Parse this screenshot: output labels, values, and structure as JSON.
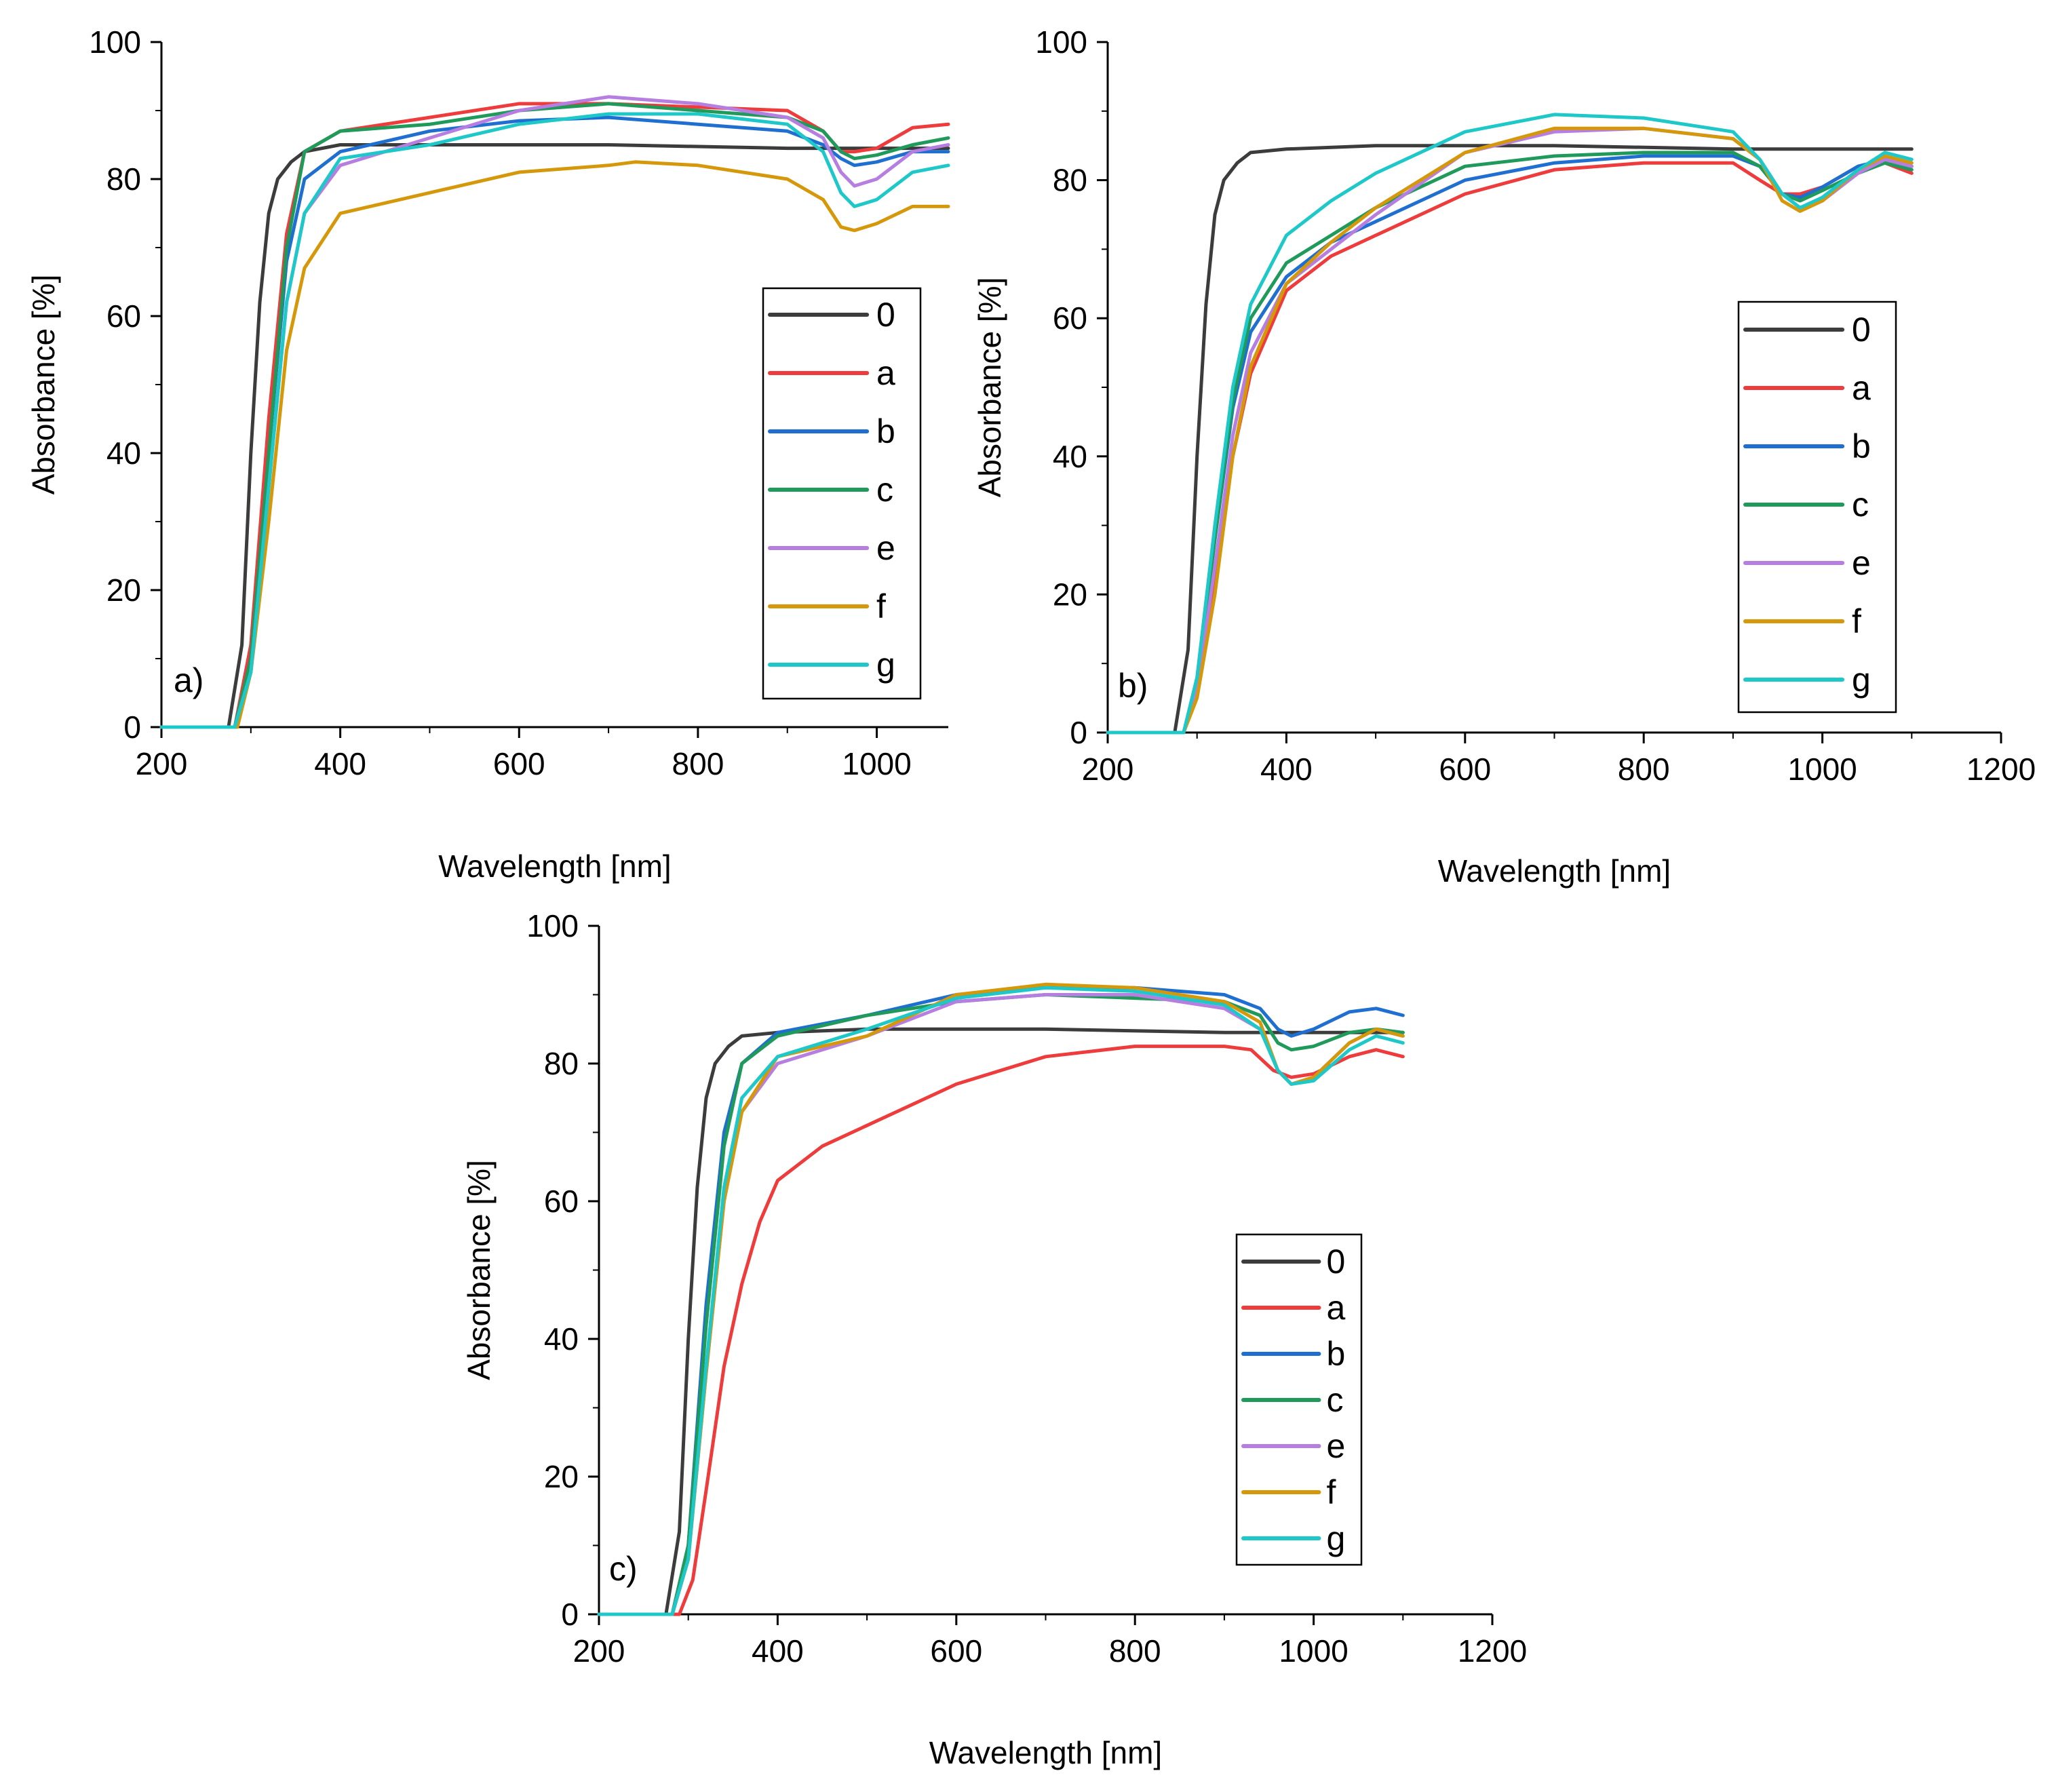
{
  "figure": "UV-Vis-NIR absorbance spectra, three panels",
  "colors": {
    "0": "#3c3c3c",
    "a": "#ee3b3b",
    "b": "#1f6fd1",
    "c": "#1f9a5b",
    "e": "#b57ee0",
    "f": "#d4980a",
    "g": "#1ec8c8"
  },
  "chart_data": [
    {
      "type": "line",
      "panel_label": "a)",
      "xlabel": "Wavelength [nm]",
      "ylabel": "Absorbance [%]",
      "xlim": [
        200,
        1080
      ],
      "ylim": [
        0,
        100
      ],
      "xticks": [
        200,
        400,
        600,
        800,
        1000
      ],
      "yticks": [
        0,
        20,
        40,
        60,
        80,
        100
      ],
      "legend_position": "right-middle",
      "series": [
        {
          "name": "0",
          "x": [
            200,
            275,
            290,
            300,
            310,
            320,
            330,
            345,
            360,
            400,
            500,
            700,
            900,
            1000,
            1080
          ],
          "y": [
            0,
            0,
            12,
            40,
            62,
            75,
            80,
            82.5,
            84,
            85,
            85,
            85,
            84.5,
            84.5,
            84.5
          ]
        },
        {
          "name": "a",
          "x": [
            200,
            282,
            300,
            320,
            340,
            360,
            400,
            500,
            600,
            700,
            800,
            900,
            940,
            960,
            975,
            1000,
            1040,
            1080
          ],
          "y": [
            0,
            0,
            12,
            45,
            72,
            84,
            87,
            89,
            91,
            91,
            90.5,
            90,
            87,
            84,
            84,
            84.5,
            87.5,
            88
          ]
        },
        {
          "name": "b",
          "x": [
            200,
            282,
            300,
            320,
            340,
            360,
            400,
            500,
            600,
            700,
            800,
            900,
            940,
            960,
            975,
            1000,
            1040,
            1080
          ],
          "y": [
            0,
            0,
            10,
            40,
            68,
            80,
            84,
            87,
            88.5,
            89,
            88,
            87,
            85,
            83,
            82,
            82.5,
            84,
            84
          ]
        },
        {
          "name": "c",
          "x": [
            200,
            282,
            300,
            320,
            340,
            360,
            400,
            500,
            600,
            700,
            800,
            900,
            940,
            960,
            975,
            1000,
            1040,
            1080
          ],
          "y": [
            0,
            0,
            10,
            40,
            70,
            84,
            87,
            88,
            90,
            91,
            90,
            89,
            87,
            84,
            83,
            83.5,
            85,
            86
          ]
        },
        {
          "name": "e",
          "x": [
            200,
            282,
            300,
            320,
            340,
            360,
            400,
            500,
            600,
            700,
            800,
            900,
            940,
            960,
            975,
            1000,
            1040,
            1080
          ],
          "y": [
            0,
            0,
            8,
            35,
            62,
            75,
            82,
            86,
            90,
            92,
            91,
            89,
            86,
            81,
            79,
            80,
            84,
            85
          ]
        },
        {
          "name": "f",
          "x": [
            200,
            285,
            300,
            320,
            340,
            360,
            400,
            500,
            600,
            700,
            730,
            800,
            900,
            940,
            960,
            975,
            1000,
            1040,
            1080
          ],
          "y": [
            0,
            0,
            8,
            30,
            55,
            67,
            75,
            78,
            81,
            82,
            82.5,
            82,
            80,
            77,
            73,
            72.5,
            73.5,
            76,
            76
          ]
        },
        {
          "name": "g",
          "x": [
            200,
            282,
            300,
            320,
            340,
            360,
            400,
            500,
            600,
            700,
            800,
            900,
            940,
            960,
            975,
            1000,
            1040,
            1080
          ],
          "y": [
            0,
            0,
            8,
            35,
            62,
            75,
            83,
            85,
            88,
            89.5,
            89.5,
            88,
            84,
            78,
            76,
            77,
            81,
            82
          ]
        }
      ],
      "legend": [
        "0",
        "a",
        "b",
        "c",
        "e",
        "f",
        "g"
      ]
    },
    {
      "type": "line",
      "panel_label": "b)",
      "xlabel": "Wavelength [nm]",
      "ylabel": "Absorbance [%]",
      "xlim": [
        200,
        1200
      ],
      "ylim": [
        0,
        100
      ],
      "xticks": [
        200,
        400,
        600,
        800,
        1000,
        1200
      ],
      "yticks": [
        0,
        20,
        40,
        60,
        80,
        100
      ],
      "legend_position": "right-middle",
      "series": [
        {
          "name": "0",
          "x": [
            200,
            275,
            290,
            300,
            310,
            320,
            330,
            345,
            360,
            400,
            500,
            700,
            900,
            1000,
            1100
          ],
          "y": [
            0,
            0,
            12,
            40,
            62,
            75,
            80,
            82.5,
            84,
            84.5,
            85,
            85,
            84.5,
            84.5,
            84.5
          ]
        },
        {
          "name": "a",
          "x": [
            200,
            285,
            300,
            320,
            340,
            360,
            400,
            450,
            500,
            600,
            700,
            800,
            900,
            930,
            955,
            975,
            1000,
            1040,
            1070,
            1100
          ],
          "y": [
            0,
            0,
            6,
            22,
            40,
            52,
            64,
            69,
            72,
            78,
            81.5,
            82.5,
            82.5,
            80,
            78,
            78,
            79,
            82,
            82.5,
            81
          ]
        },
        {
          "name": "b",
          "x": [
            200,
            285,
            300,
            320,
            340,
            360,
            400,
            450,
            500,
            600,
            700,
            800,
            900,
            930,
            955,
            975,
            1000,
            1040,
            1070,
            1100
          ],
          "y": [
            0,
            0,
            7,
            28,
            47,
            58,
            66,
            71,
            74,
            80,
            82.5,
            83.5,
            83.5,
            82,
            78,
            77.5,
            79,
            82,
            83,
            82
          ]
        },
        {
          "name": "c",
          "x": [
            200,
            285,
            300,
            320,
            340,
            360,
            400,
            450,
            500,
            600,
            700,
            800,
            900,
            930,
            955,
            975,
            1000,
            1040,
            1070,
            1100
          ],
          "y": [
            0,
            0,
            7,
            28,
            48,
            60,
            68,
            72,
            76,
            82,
            83.5,
            84,
            84,
            82,
            78,
            77,
            78.5,
            81,
            82.5,
            81.5
          ]
        },
        {
          "name": "e",
          "x": [
            200,
            285,
            300,
            320,
            340,
            360,
            400,
            450,
            500,
            600,
            700,
            800,
            900,
            930,
            955,
            975,
            1000,
            1040,
            1070,
            1100
          ],
          "y": [
            0,
            0,
            6,
            24,
            43,
            55,
            65,
            70,
            75,
            84,
            87,
            87.5,
            86,
            83,
            78,
            76,
            77,
            81,
            83,
            82
          ]
        },
        {
          "name": "f",
          "x": [
            200,
            285,
            300,
            320,
            340,
            360,
            400,
            450,
            500,
            600,
            700,
            800,
            900,
            930,
            955,
            975,
            1000,
            1040,
            1070,
            1100
          ],
          "y": [
            0,
            0,
            5,
            20,
            40,
            53,
            65,
            71,
            76,
            84,
            87.5,
            87.5,
            86,
            83,
            77,
            75.5,
            77,
            81.5,
            83.5,
            82.5
          ]
        },
        {
          "name": "g",
          "x": [
            200,
            285,
            300,
            320,
            340,
            360,
            400,
            450,
            500,
            600,
            700,
            800,
            900,
            930,
            955,
            975,
            1000,
            1040,
            1070,
            1100
          ],
          "y": [
            0,
            0,
            8,
            30,
            50,
            62,
            72,
            77,
            81,
            87,
            89.5,
            89,
            87,
            83,
            78,
            76,
            77.5,
            81.5,
            84,
            83
          ]
        }
      ],
      "legend": [
        "0",
        "a",
        "b",
        "c",
        "e",
        "f",
        "g"
      ]
    },
    {
      "type": "line",
      "panel_label": "c)",
      "xlabel": "Wavelength [nm]",
      "ylabel": "Absorbance [%]",
      "xlim": [
        200,
        1200
      ],
      "ylim": [
        0,
        100
      ],
      "xticks": [
        200,
        400,
        600,
        800,
        1000,
        1200
      ],
      "yticks": [
        0,
        20,
        40,
        60,
        80,
        100
      ],
      "legend_position": "right-middle",
      "series": [
        {
          "name": "0",
          "x": [
            200,
            275,
            290,
            300,
            310,
            320,
            330,
            345,
            360,
            400,
            500,
            700,
            900,
            1000,
            1100
          ],
          "y": [
            0,
            0,
            12,
            40,
            62,
            75,
            80,
            82.5,
            84,
            84.5,
            85,
            85,
            84.5,
            84.5,
            84.5
          ]
        },
        {
          "name": "a",
          "x": [
            200,
            290,
            305,
            320,
            340,
            360,
            380,
            400,
            450,
            500,
            600,
            700,
            800,
            900,
            930,
            955,
            975,
            1000,
            1040,
            1070,
            1100
          ],
          "y": [
            0,
            0,
            5,
            18,
            36,
            48,
            57,
            63,
            68,
            71,
            77,
            81,
            82.5,
            82.5,
            82,
            79,
            78,
            78.5,
            81,
            82,
            81
          ]
        },
        {
          "name": "b",
          "x": [
            200,
            282,
            300,
            320,
            340,
            360,
            400,
            500,
            600,
            700,
            800,
            900,
            940,
            960,
            975,
            1000,
            1040,
            1070,
            1100
          ],
          "y": [
            0,
            0,
            10,
            45,
            70,
            80,
            84.5,
            87,
            90,
            91,
            91,
            90,
            88,
            85,
            84,
            85,
            87.5,
            88,
            87
          ]
        },
        {
          "name": "c",
          "x": [
            200,
            282,
            300,
            320,
            340,
            360,
            400,
            500,
            600,
            700,
            800,
            900,
            940,
            960,
            975,
            1000,
            1040,
            1070,
            1100
          ],
          "y": [
            0,
            0,
            10,
            42,
            68,
            80,
            84,
            87,
            89,
            90,
            89.5,
            89,
            87,
            83,
            82,
            82.5,
            84.5,
            85,
            84.5
          ]
        },
        {
          "name": "e",
          "x": [
            200,
            282,
            300,
            320,
            340,
            360,
            400,
            500,
            600,
            700,
            800,
            900,
            940,
            960,
            975,
            1000,
            1040,
            1070,
            1100
          ],
          "y": [
            0,
            0,
            8,
            35,
            60,
            73,
            80,
            84,
            89,
            90,
            90,
            88,
            85,
            79,
            77,
            78,
            83,
            85,
            84
          ]
        },
        {
          "name": "f",
          "x": [
            200,
            282,
            300,
            320,
            340,
            360,
            400,
            500,
            600,
            700,
            800,
            900,
            940,
            960,
            975,
            1000,
            1040,
            1070,
            1100
          ],
          "y": [
            0,
            0,
            8,
            35,
            60,
            73,
            81,
            84,
            90,
            91.5,
            91,
            89,
            86,
            79,
            77,
            78,
            83,
            85,
            84
          ]
        },
        {
          "name": "g",
          "x": [
            200,
            282,
            300,
            320,
            340,
            360,
            400,
            500,
            600,
            700,
            800,
            900,
            940,
            960,
            975,
            1000,
            1040,
            1070,
            1100
          ],
          "y": [
            0,
            0,
            8,
            36,
            62,
            75,
            81,
            85,
            89.5,
            91,
            90.5,
            88.5,
            85,
            79,
            77,
            77.5,
            82,
            84,
            83
          ]
        }
      ],
      "legend": [
        "0",
        "a",
        "b",
        "c",
        "e",
        "f",
        "g"
      ]
    }
  ]
}
